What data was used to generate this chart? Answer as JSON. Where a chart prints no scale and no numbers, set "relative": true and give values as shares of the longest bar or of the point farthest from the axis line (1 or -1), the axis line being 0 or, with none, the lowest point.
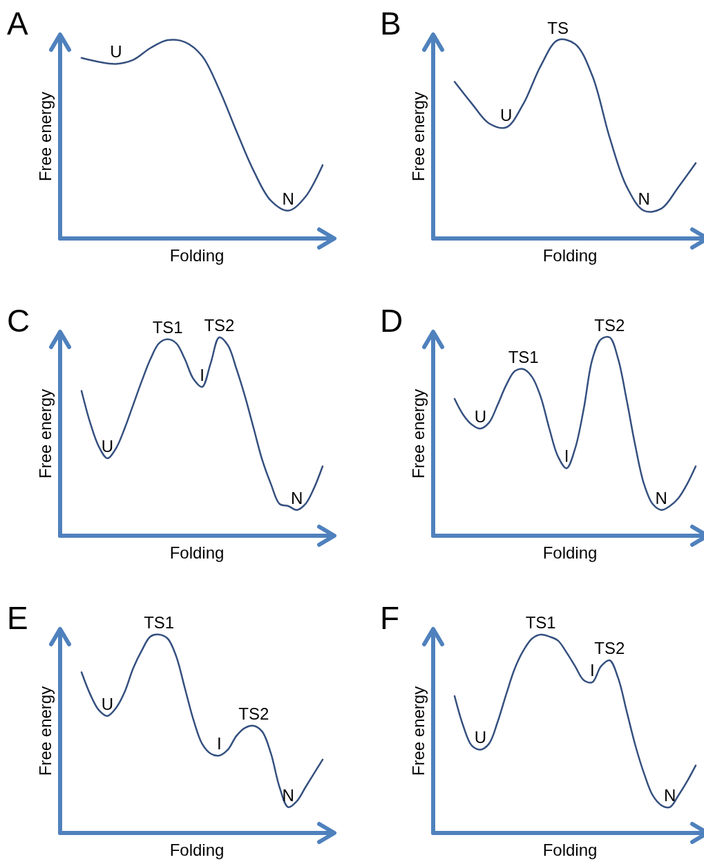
{
  "chart_data": [
    {
      "type": "line",
      "title": "A",
      "xlabel": "Folding",
      "ylabel": "Free energy",
      "relative": true,
      "color": "#35507f",
      "categories": [
        null,
        null,
        null,
        null,
        null,
        null,
        null,
        null,
        null,
        null,
        null,
        null,
        null,
        null,
        null
      ],
      "values": [
        0.91,
        0.89,
        0.88,
        0.9,
        0.96,
        1.0,
        0.99,
        0.92,
        0.75,
        0.54,
        0.34,
        0.19,
        0.14,
        0.21,
        0.37
      ],
      "annotations": [
        {
          "text": "U",
          "y": 0.88
        },
        {
          "text": "N",
          "y": 0.14
        }
      ]
    },
    {
      "type": "line",
      "title": "B",
      "xlabel": "Folding",
      "ylabel": "Free energy",
      "relative": true,
      "color": "#35507f",
      "categories": [
        null,
        null,
        null,
        null,
        null,
        null,
        null,
        null,
        null,
        null,
        null,
        null,
        null,
        null,
        null
      ],
      "values": [
        0.79,
        0.68,
        0.58,
        0.56,
        0.68,
        0.87,
        1.0,
        0.98,
        0.82,
        0.51,
        0.26,
        0.14,
        0.15,
        0.26,
        0.38
      ],
      "annotations": [
        {
          "text": "U",
          "y": 0.56
        },
        {
          "text": "TS",
          "y": 1.0
        },
        {
          "text": "N",
          "y": 0.14
        }
      ]
    },
    {
      "type": "line",
      "title": "C",
      "xlabel": "Folding",
      "ylabel": "Free energy",
      "relative": true,
      "color": "#35507f",
      "categories": [
        null,
        null,
        null,
        null,
        null,
        null,
        null,
        null,
        null,
        null,
        null,
        null,
        null,
        null,
        null,
        null,
        null,
        null,
        null,
        null,
        null,
        null,
        null,
        null,
        null,
        null,
        null,
        null,
        null
      ],
      "values": [
        0.73,
        0.57,
        0.45,
        0.39,
        0.44,
        0.54,
        0.66,
        0.78,
        0.89,
        0.97,
        0.99,
        0.97,
        0.89,
        0.79,
        0.75,
        0.87,
        1.0,
        0.96,
        0.84,
        0.7,
        0.54,
        0.38,
        0.26,
        0.16,
        0.15,
        0.13,
        0.16,
        0.24,
        0.35
      ],
      "annotations": [
        {
          "text": "U",
          "y": 0.39
        },
        {
          "text": "TS1",
          "y": 0.99
        },
        {
          "text": "I",
          "y": 0.75
        },
        {
          "text": "TS2",
          "y": 1.0
        },
        {
          "text": "N",
          "y": 0.13
        }
      ]
    },
    {
      "type": "line",
      "title": "D",
      "xlabel": "Folding",
      "ylabel": "Free energy",
      "relative": true,
      "color": "#35507f",
      "categories": [
        null,
        null,
        null,
        null,
        null,
        null,
        null,
        null,
        null,
        null,
        null,
        null,
        null,
        null,
        null,
        null,
        null,
        null,
        null,
        null,
        null,
        null,
        null,
        null,
        null,
        null,
        null,
        null,
        null
      ],
      "values": [
        0.69,
        0.61,
        0.56,
        0.54,
        0.57,
        0.66,
        0.76,
        0.83,
        0.84,
        0.8,
        0.7,
        0.54,
        0.4,
        0.34,
        0.44,
        0.64,
        0.89,
        0.99,
        1.0,
        0.89,
        0.68,
        0.45,
        0.26,
        0.16,
        0.13,
        0.15,
        0.19,
        0.26,
        0.35
      ],
      "annotations": [
        {
          "text": "U",
          "y": 0.54
        },
        {
          "text": "TS1",
          "y": 0.84
        },
        {
          "text": "I",
          "y": 0.34
        },
        {
          "text": "TS2",
          "y": 1.0
        },
        {
          "text": "N",
          "y": 0.13
        }
      ]
    },
    {
      "type": "line",
      "title": "E",
      "xlabel": "Folding",
      "ylabel": "Free energy",
      "relative": true,
      "color": "#35507f",
      "categories": [
        null,
        null,
        null,
        null,
        null,
        null,
        null,
        null,
        null,
        null,
        null,
        null,
        null,
        null,
        null,
        null,
        null,
        null,
        null,
        null,
        null,
        null,
        null,
        null,
        null,
        null,
        null,
        null,
        null
      ],
      "values": [
        0.81,
        0.7,
        0.62,
        0.59,
        0.63,
        0.71,
        0.83,
        0.92,
        0.99,
        1.0,
        0.98,
        0.89,
        0.73,
        0.57,
        0.45,
        0.4,
        0.39,
        0.42,
        0.49,
        0.53,
        0.54,
        0.51,
        0.4,
        0.23,
        0.13,
        0.16,
        0.23,
        0.3,
        0.37
      ],
      "annotations": [
        {
          "text": "U",
          "y": 0.59
        },
        {
          "text": "TS1",
          "y": 1.0
        },
        {
          "text": "I",
          "y": 0.39
        },
        {
          "text": "TS2",
          "y": 0.54
        },
        {
          "text": "N",
          "y": 0.13
        }
      ]
    },
    {
      "type": "line",
      "title": "F",
      "xlabel": "Folding",
      "ylabel": "Free energy",
      "relative": true,
      "color": "#35507f",
      "categories": [
        null,
        null,
        null,
        null,
        null,
        null,
        null,
        null,
        null,
        null,
        null,
        null,
        null,
        null,
        null,
        null,
        null,
        null,
        null,
        null,
        null,
        null,
        null,
        null,
        null,
        null,
        null,
        null,
        null
      ],
      "values": [
        0.69,
        0.54,
        0.44,
        0.42,
        0.45,
        0.56,
        0.7,
        0.83,
        0.92,
        0.98,
        1.0,
        0.99,
        0.97,
        0.91,
        0.84,
        0.77,
        0.76,
        0.84,
        0.87,
        0.78,
        0.61,
        0.44,
        0.3,
        0.19,
        0.14,
        0.13,
        0.19,
        0.26,
        0.34
      ],
      "annotations": [
        {
          "text": "U",
          "y": 0.42
        },
        {
          "text": "TS1",
          "y": 1.0
        },
        {
          "text": "I",
          "y": 0.76
        },
        {
          "text": "TS2",
          "y": 0.87
        },
        {
          "text": "N",
          "y": 0.13
        }
      ]
    }
  ]
}
